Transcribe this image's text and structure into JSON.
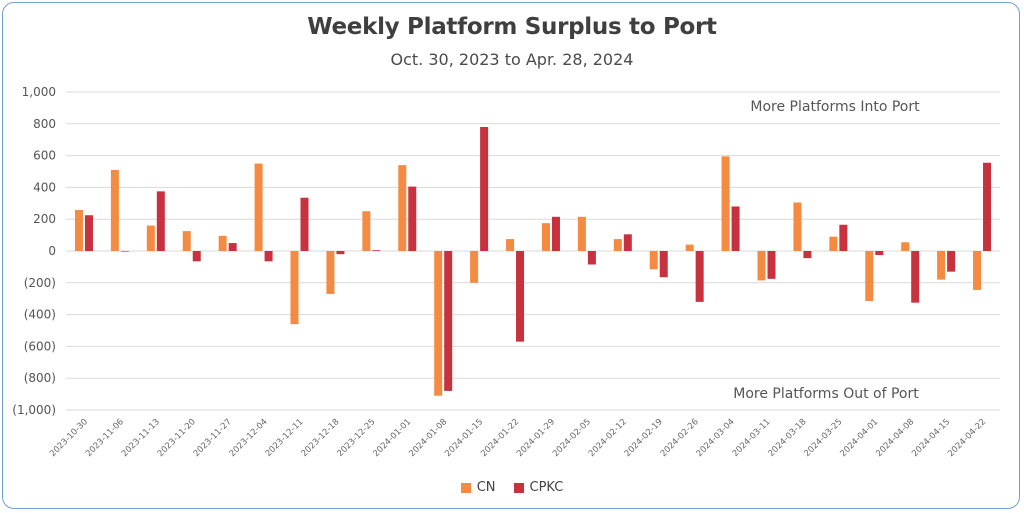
{
  "chart_data": {
    "type": "bar",
    "title": "Weekly Platform Surplus to Port",
    "subtitle": "Oct. 30, 2023 to Apr. 28, 2024",
    "ylim": [
      -1000,
      1000
    ],
    "yticks": [
      1000,
      800,
      600,
      400,
      200,
      0,
      -200,
      -400,
      -600,
      -800,
      -1000
    ],
    "ytick_labels": [
      "1,000",
      "800",
      "600",
      "400",
      "200",
      "0",
      "(200)",
      "(400)",
      "(600)",
      "(800)",
      "(1,000)"
    ],
    "grid": true,
    "legend_position": "bottom",
    "annotations": [
      "More Platforms Into Port",
      "More Platforms Out of Port"
    ],
    "categories": [
      "2023-10-30",
      "2023-11-06",
      "2023-11-13",
      "2023-11-20",
      "2023-11-27",
      "2023-12-04",
      "2023-12-11",
      "2023-12-18",
      "2023-12-25",
      "2024-01-01",
      "2024-01-08",
      "2024-01-15",
      "2024-01-22",
      "2024-01-29",
      "2024-02-05",
      "2024-02-12",
      "2024-02-19",
      "2024-02-26",
      "2024-03-04",
      "2024-03-11",
      "2024-03-18",
      "2024-03-25",
      "2024-04-01",
      "2024-04-08",
      "2024-04-15",
      "2024-04-22"
    ],
    "series": [
      {
        "name": "CN",
        "color": "#f58a43",
        "values": [
          258,
          510,
          160,
          125,
          95,
          550,
          -460,
          -270,
          250,
          540,
          -910,
          -200,
          75,
          175,
          215,
          75,
          -115,
          40,
          595,
          -185,
          305,
          90,
          -315,
          55,
          -180,
          -245
        ]
      },
      {
        "name": "CPKC",
        "color": "#c8313e",
        "values": [
          225,
          0,
          375,
          -65,
          50,
          -65,
          335,
          -20,
          5,
          405,
          -880,
          780,
          -570,
          215,
          -85,
          105,
          -165,
          -320,
          280,
          -175,
          -45,
          165,
          -25,
          -325,
          -130,
          555
        ]
      }
    ]
  }
}
